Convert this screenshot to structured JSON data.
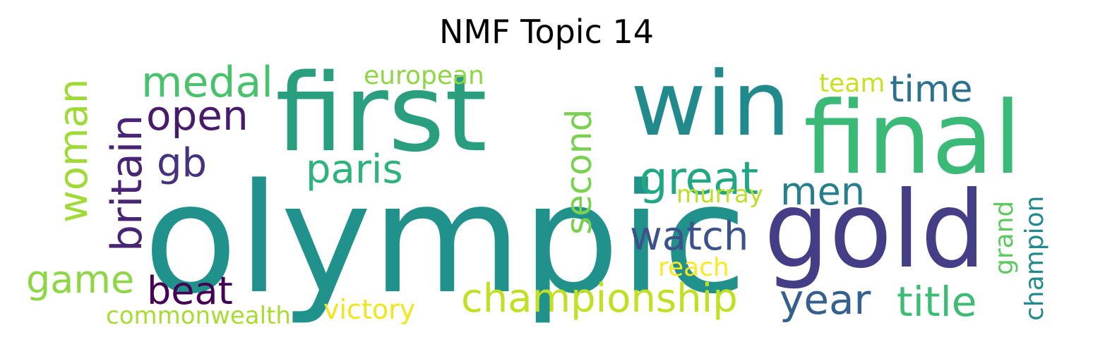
{
  "title": "NMF Topic 14",
  "words": [
    {
      "text": "olympic",
      "color": "#21918c"
    },
    {
      "text": "first",
      "color": "#2a9f7f"
    },
    {
      "text": "win",
      "color": "#228a8d"
    },
    {
      "text": "final",
      "color": "#3aba76"
    },
    {
      "text": "gold",
      "color": "#433e85"
    },
    {
      "text": "medal",
      "color": "#4ac16d"
    },
    {
      "text": "britain",
      "color": "#482475"
    },
    {
      "text": "open",
      "color": "#481a6c"
    },
    {
      "text": "gb",
      "color": "#46327e"
    },
    {
      "text": "woman",
      "color": "#a0da39"
    },
    {
      "text": "european",
      "color": "#8ed645"
    },
    {
      "text": "paris",
      "color": "#2eb37c"
    },
    {
      "text": "second",
      "color": "#7ad151"
    },
    {
      "text": "great",
      "color": "#22a785"
    },
    {
      "text": "men",
      "color": "#277f8e"
    },
    {
      "text": "murray",
      "color": "#bddf26"
    },
    {
      "text": "time",
      "color": "#2c728e"
    },
    {
      "text": "team",
      "color": "#c8e020"
    },
    {
      "text": "watch",
      "color": "#3b528b"
    },
    {
      "text": "game",
      "color": "#8ed645"
    },
    {
      "text": "beat",
      "color": "#440154"
    },
    {
      "text": "championship",
      "color": "#c2df23"
    },
    {
      "text": "reach",
      "color": "#fde725"
    },
    {
      "text": "year",
      "color": "#355f8d"
    },
    {
      "text": "title",
      "color": "#3dbc74"
    },
    {
      "text": "grand",
      "color": "#5ec962"
    },
    {
      "text": "champion",
      "color": "#23898e"
    },
    {
      "text": "victory",
      "color": "#f1e51d"
    },
    {
      "text": "commonwealth",
      "color": "#a8db34"
    }
  ]
}
